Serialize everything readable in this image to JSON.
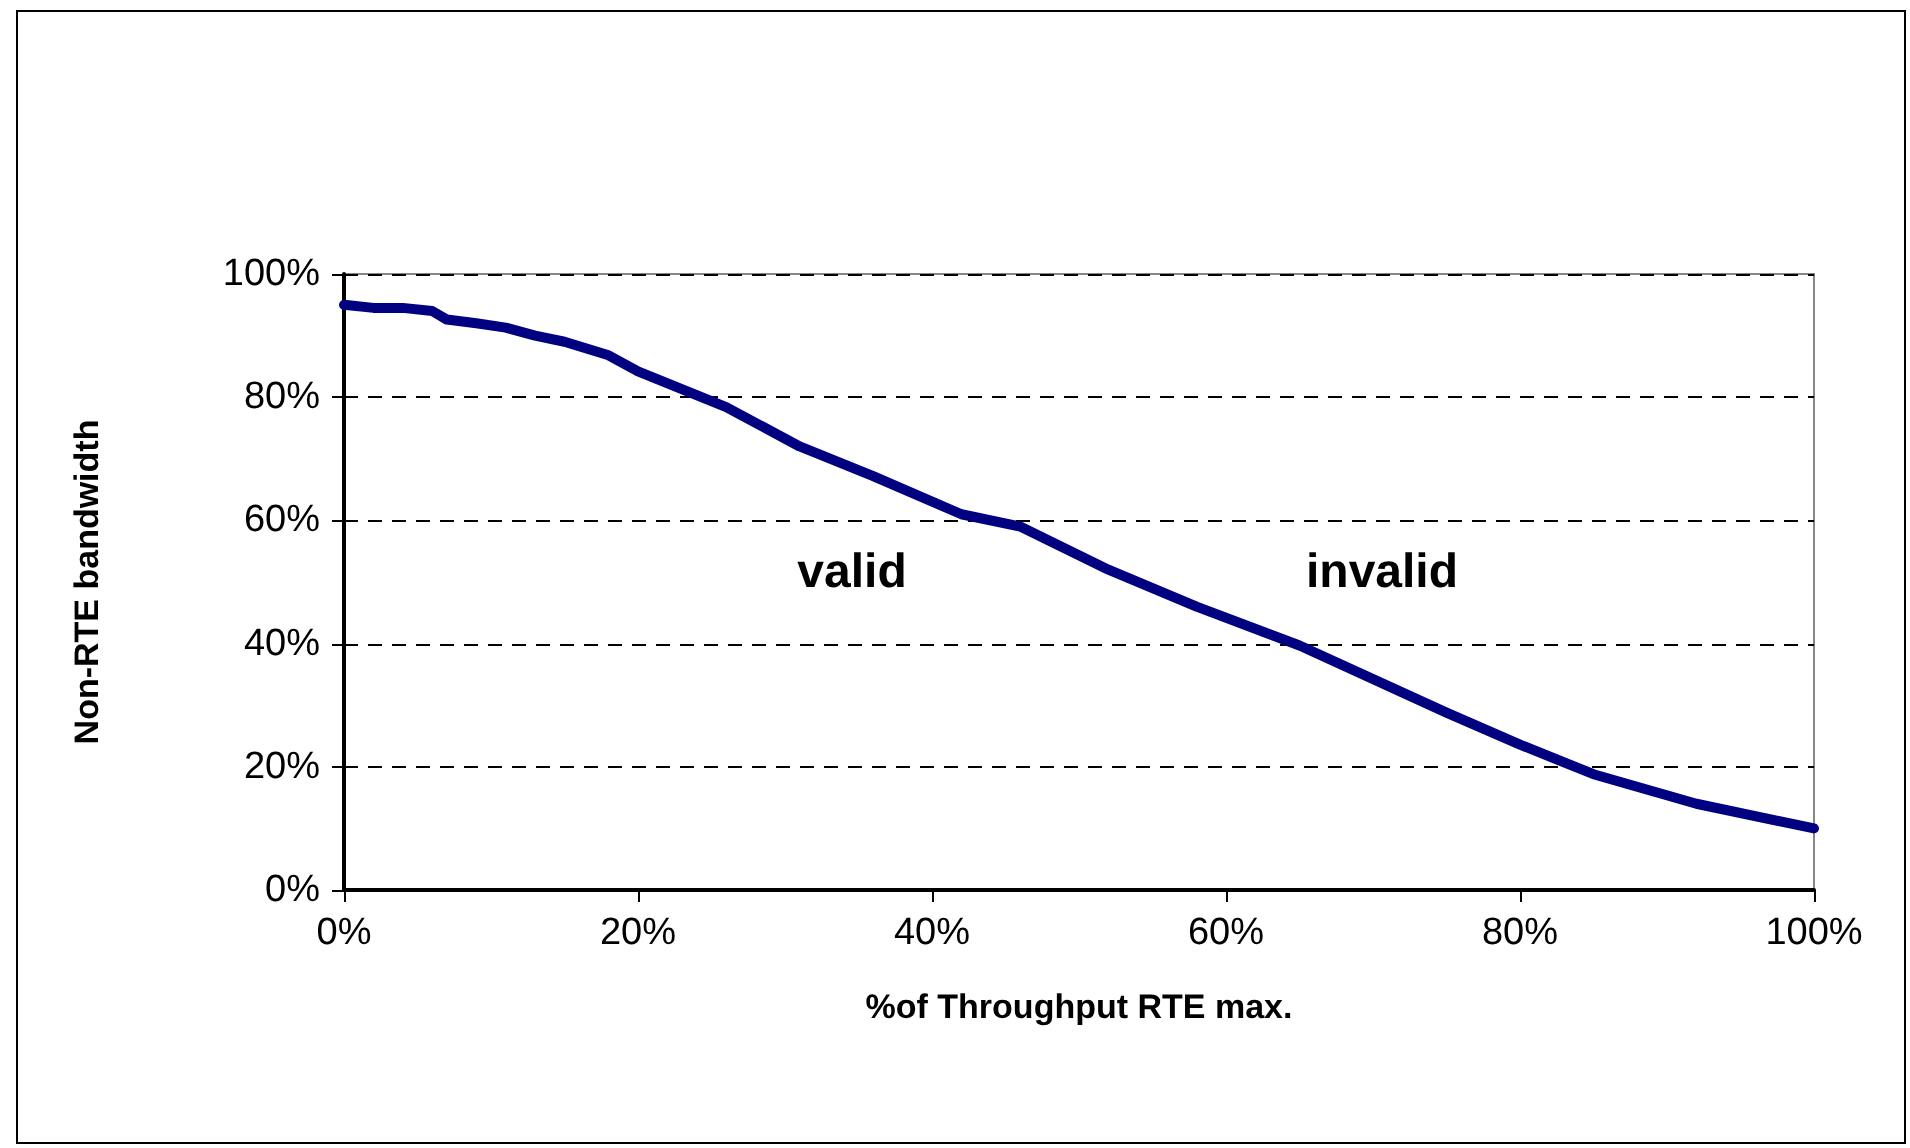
{
  "chart_data": {
    "type": "line",
    "xlabel": "%of Throughput RTE max.",
    "ylabel": "Non-RTE bandwidth",
    "x": [
      0,
      2,
      4,
      6,
      7,
      9,
      11,
      13,
      15,
      18,
      20,
      26,
      31,
      36,
      42,
      46,
      52,
      58,
      65,
      75,
      80,
      85,
      92,
      100
    ],
    "series": [
      {
        "color": "#000080",
        "values": [
          95,
          94.5,
          94.5,
          94,
          92.6,
          92,
          91.3,
          90,
          89,
          86.8,
          84.2,
          78.4,
          72,
          67.2,
          61,
          59,
          52,
          46,
          39.7,
          28.8,
          23.6,
          18.8,
          14,
          10
        ]
      }
    ],
    "xlim": [
      0,
      100
    ],
    "ylim": [
      0,
      100
    ],
    "xticks": [
      {
        "value": 0,
        "label": "0%"
      },
      {
        "value": 20,
        "label": "20%"
      },
      {
        "value": 40,
        "label": "40%"
      },
      {
        "value": 60,
        "label": "60%"
      },
      {
        "value": 80,
        "label": "80%"
      },
      {
        "value": 100,
        "label": "100%"
      }
    ],
    "yticks": [
      {
        "value": 0,
        "label": "0%"
      },
      {
        "value": 20,
        "label": "20%"
      },
      {
        "value": 40,
        "label": "40%"
      },
      {
        "value": 60,
        "label": "60%"
      },
      {
        "value": 80,
        "label": "80%"
      },
      {
        "value": 100,
        "label": "100%"
      }
    ],
    "grid": "y",
    "marker": "none",
    "line_style": "solid",
    "annotations": [
      "valid",
      "invalid"
    ]
  }
}
